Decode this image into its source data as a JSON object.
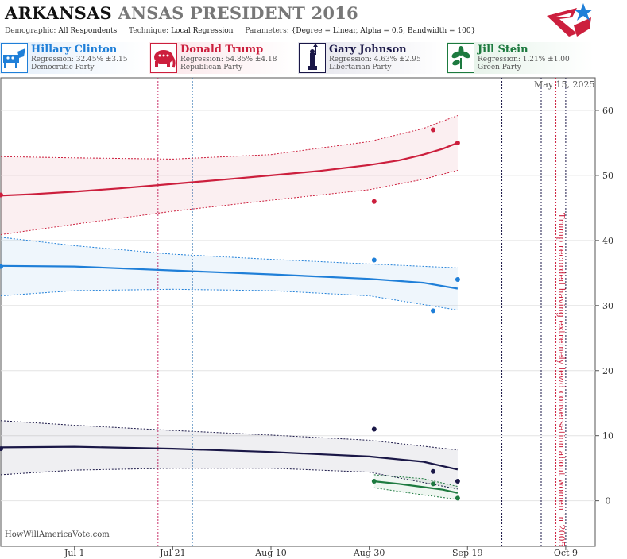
{
  "header": {
    "state": "ARKANSAS",
    "race": "ANSAS PRESIDENT 2016",
    "demographic_label": "Demographic:",
    "demographic": "All Respondents",
    "technique_label": "Technique:",
    "technique": "Local Regression",
    "parameters_label": "Parameters:",
    "parameters": "{Degree = Linear, Alpha = 0.5, Bandwidth = 100}"
  },
  "candidates": [
    {
      "name": "Hillary Clinton",
      "regression": "Regression: 32.45% ±3.15",
      "party": "Democratic Party",
      "color": "#1f7fd8",
      "icon": "donkey-icon"
    },
    {
      "name": "Donald Trump",
      "regression": "Regression: 54.85% ±4.18",
      "party": "Republican Party",
      "color": "#cc1f3d",
      "icon": "elephant-icon"
    },
    {
      "name": "Gary Johnson",
      "regression": "Regression: 4.63% ±2.95",
      "party": "Libertarian Party",
      "color": "#1a1747",
      "icon": "statue-of-liberty-icon"
    },
    {
      "name": "Jill Stein",
      "regression": "Regression: 1.21% ±1.00",
      "party": "Green Party",
      "color": "#1d7a3f",
      "icon": "leaf-icon"
    }
  ],
  "date_label": "May 15, 2025",
  "watermark": "HowWillAmericaVote.com",
  "annotation": "Trump recorded having extremely lewd conversation about women in 2005",
  "chart_data": {
    "type": "line",
    "x_tick_labels": [
      "Jul 1",
      "Jul 21",
      "Aug 10",
      "Aug 30",
      "Sep 19",
      "Oct 9"
    ],
    "x_tick_dates": [
      "2016-07-01",
      "2016-07-21",
      "2016-08-10",
      "2016-08-30",
      "2016-09-19",
      "2016-10-09"
    ],
    "xlim": [
      "2016-06-16",
      "2016-10-15"
    ],
    "ylim": [
      -7,
      65
    ],
    "y_ticks": [
      0,
      10,
      20,
      30,
      40,
      50,
      60
    ],
    "grid": true,
    "series": [
      {
        "name": "Donald Trump",
        "color": "#cc1f3d",
        "points": [
          [
            "2016-06-16",
            47
          ],
          [
            "2016-08-31",
            46
          ],
          [
            "2016-09-12",
            57
          ],
          [
            "2016-09-17",
            55
          ]
        ],
        "trend": [
          [
            "2016-06-16",
            46.9
          ],
          [
            "2016-06-22",
            47.1
          ],
          [
            "2016-07-01",
            47.5
          ],
          [
            "2016-07-10",
            48.0
          ],
          [
            "2016-07-21",
            48.7
          ],
          [
            "2016-08-01",
            49.4
          ],
          [
            "2016-08-10",
            50.0
          ],
          [
            "2016-08-20",
            50.7
          ],
          [
            "2016-08-30",
            51.6
          ],
          [
            "2016-09-05",
            52.3
          ],
          [
            "2016-09-10",
            53.2
          ],
          [
            "2016-09-14",
            54.1
          ],
          [
            "2016-09-17",
            55.0
          ]
        ],
        "upper": [
          [
            "2016-06-16",
            52.9
          ],
          [
            "2016-07-01",
            52.7
          ],
          [
            "2016-07-21",
            52.5
          ],
          [
            "2016-08-10",
            53.2
          ],
          [
            "2016-08-30",
            55.2
          ],
          [
            "2016-09-10",
            57.2
          ],
          [
            "2016-09-17",
            59.2
          ]
        ],
        "lower": [
          [
            "2016-06-16",
            40.9
          ],
          [
            "2016-07-01",
            42.5
          ],
          [
            "2016-07-21",
            44.5
          ],
          [
            "2016-08-10",
            46.2
          ],
          [
            "2016-08-30",
            47.8
          ],
          [
            "2016-09-10",
            49.4
          ],
          [
            "2016-09-17",
            50.8
          ]
        ]
      },
      {
        "name": "Hillary Clinton",
        "color": "#1f7fd8",
        "points": [
          [
            "2016-06-16",
            36
          ],
          [
            "2016-08-31",
            37
          ],
          [
            "2016-09-12",
            29.2
          ],
          [
            "2016-09-17",
            34
          ]
        ],
        "trend": [
          [
            "2016-06-16",
            36.1
          ],
          [
            "2016-07-01",
            36.0
          ],
          [
            "2016-07-21",
            35.4
          ],
          [
            "2016-08-10",
            34.8
          ],
          [
            "2016-08-30",
            34.1
          ],
          [
            "2016-09-10",
            33.5
          ],
          [
            "2016-09-17",
            32.6
          ]
        ],
        "upper": [
          [
            "2016-06-16",
            40.5
          ],
          [
            "2016-07-01",
            39.2
          ],
          [
            "2016-07-21",
            37.9
          ],
          [
            "2016-08-10",
            37.1
          ],
          [
            "2016-08-30",
            36.4
          ],
          [
            "2016-09-17",
            35.8
          ]
        ],
        "lower": [
          [
            "2016-06-16",
            31.5
          ],
          [
            "2016-07-01",
            32.3
          ],
          [
            "2016-07-21",
            32.5
          ],
          [
            "2016-08-10",
            32.3
          ],
          [
            "2016-08-30",
            31.5
          ],
          [
            "2016-09-17",
            29.3
          ]
        ]
      },
      {
        "name": "Gary Johnson",
        "color": "#1a1747",
        "points": [
          [
            "2016-06-16",
            8
          ],
          [
            "2016-08-31",
            11
          ],
          [
            "2016-09-12",
            4.5
          ],
          [
            "2016-09-17",
            3
          ]
        ],
        "trend": [
          [
            "2016-06-16",
            8.2
          ],
          [
            "2016-07-01",
            8.3
          ],
          [
            "2016-07-21",
            8.0
          ],
          [
            "2016-08-10",
            7.5
          ],
          [
            "2016-08-30",
            6.8
          ],
          [
            "2016-09-10",
            6.0
          ],
          [
            "2016-09-17",
            4.8
          ]
        ],
        "upper": [
          [
            "2016-06-16",
            12.3
          ],
          [
            "2016-07-01",
            11.6
          ],
          [
            "2016-07-21",
            10.8
          ],
          [
            "2016-08-10",
            10.1
          ],
          [
            "2016-08-30",
            9.3
          ],
          [
            "2016-09-17",
            7.8
          ]
        ],
        "lower": [
          [
            "2016-06-16",
            4.0
          ],
          [
            "2016-07-01",
            4.7
          ],
          [
            "2016-07-21",
            5.0
          ],
          [
            "2016-08-10",
            5.0
          ],
          [
            "2016-08-30",
            4.4
          ],
          [
            "2016-09-17",
            1.8
          ]
        ]
      },
      {
        "name": "Jill Stein",
        "color": "#1d7a3f",
        "points": [
          [
            "2016-08-31",
            3
          ],
          [
            "2016-09-12",
            2.6
          ],
          [
            "2016-09-17",
            0.4
          ]
        ],
        "trend": [
          [
            "2016-08-31",
            3.0
          ],
          [
            "2016-09-05",
            2.6
          ],
          [
            "2016-09-10",
            2.1
          ],
          [
            "2016-09-14",
            1.7
          ],
          [
            "2016-09-17",
            1.2
          ]
        ],
        "upper": [
          [
            "2016-08-31",
            4.0
          ],
          [
            "2016-09-10",
            3.4
          ],
          [
            "2016-09-17",
            2.2
          ]
        ],
        "lower": [
          [
            "2016-08-31",
            2.0
          ],
          [
            "2016-09-10",
            0.9
          ],
          [
            "2016-09-17",
            0.2
          ]
        ]
      }
    ],
    "event_lines": [
      {
        "date": "2016-07-18",
        "color": "#c8326a"
      },
      {
        "date": "2016-07-25",
        "color": "#2a6fb0"
      },
      {
        "date": "2016-09-26",
        "color": "#1a1747"
      },
      {
        "date": "2016-10-04",
        "color": "#1a1747"
      },
      {
        "date": "2016-10-07",
        "color": "#cc1f3d"
      },
      {
        "date": "2016-10-09",
        "color": "#1a1747"
      }
    ]
  }
}
